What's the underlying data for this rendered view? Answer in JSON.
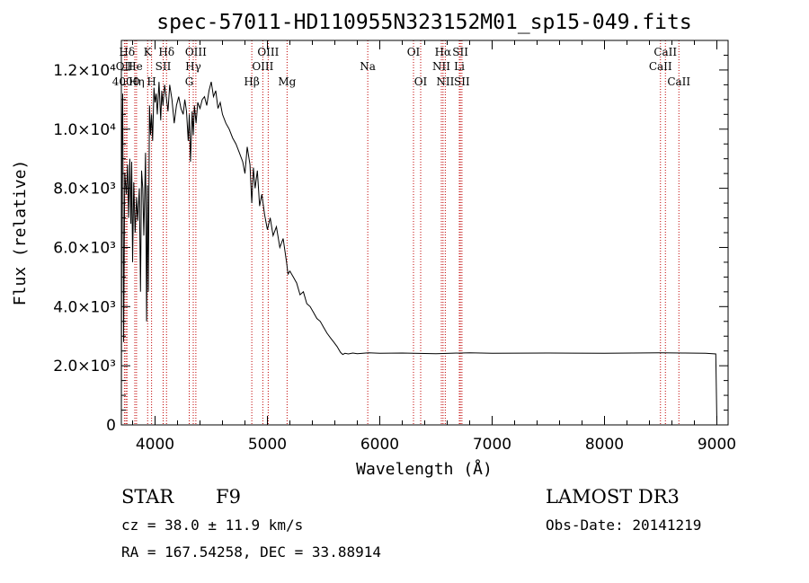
{
  "chart_data": {
    "type": "line",
    "title": "spec-57011-HD110955N323152M01_sp15-049.fits",
    "xlabel": "Wavelength (Å)",
    "ylabel": "Flux (relative)",
    "xlim": [
      3700,
      9100
    ],
    "ylim": [
      0,
      13000
    ],
    "xticks": [
      {
        "value": 4000,
        "label": "4000"
      },
      {
        "value": 5000,
        "label": "5000"
      },
      {
        "value": 6000,
        "label": "6000"
      },
      {
        "value": 7000,
        "label": "7000"
      },
      {
        "value": 8000,
        "label": "8000"
      },
      {
        "value": 9000,
        "label": "9000"
      }
    ],
    "yticks": [
      {
        "value": 0,
        "label": "0"
      },
      {
        "value": 2000,
        "label": "2.0×10³"
      },
      {
        "value": 4000,
        "label": "4.0×10³"
      },
      {
        "value": 6000,
        "label": "6.0×10³"
      },
      {
        "value": 8000,
        "label": "8.0×10³"
      },
      {
        "value": 10000,
        "label": "1.0×10⁴"
      },
      {
        "value": 12000,
        "label": "1.2×10⁴"
      }
    ],
    "spectral_lines": [
      {
        "label": "Hδ",
        "wavelength": 3750,
        "row": 1
      },
      {
        "label": "OII",
        "wavelength": 3727,
        "row": 2
      },
      {
        "label": "4000",
        "wavelength": 3740,
        "row": 3
      },
      {
        "label": "He",
        "wavelength": 3820,
        "row": 2
      },
      {
        "label": "Hη",
        "wavelength": 3835,
        "row": 3
      },
      {
        "label": "K",
        "wavelength": 3934,
        "row": 1
      },
      {
        "label": "H",
        "wavelength": 3969,
        "row": 3
      },
      {
        "label": "SII",
        "wavelength": 4072,
        "row": 2
      },
      {
        "label": "Hδ",
        "wavelength": 4102,
        "row": 1
      },
      {
        "label": "OIII",
        "wavelength": 4363,
        "row": 1
      },
      {
        "label": "Hγ",
        "wavelength": 4340,
        "row": 2
      },
      {
        "label": "G",
        "wavelength": 4304,
        "row": 3
      },
      {
        "label": "Hβ",
        "wavelength": 4861,
        "row": 3
      },
      {
        "label": "OIII",
        "wavelength": 4959,
        "row": 2
      },
      {
        "label": "OIII",
        "wavelength": 5007,
        "row": 1
      },
      {
        "label": "Mg",
        "wavelength": 5175,
        "row": 3
      },
      {
        "label": "Na",
        "wavelength": 5893,
        "row": 2
      },
      {
        "label": "OI",
        "wavelength": 6300,
        "row": 1
      },
      {
        "label": "OI",
        "wavelength": 6364,
        "row": 3
      },
      {
        "label": "NII",
        "wavelength": 6548,
        "row": 2
      },
      {
        "label": "Hα",
        "wavelength": 6563,
        "row": 1
      },
      {
        "label": "NII",
        "wavelength": 6583,
        "row": 3
      },
      {
        "label": "SII",
        "wavelength": 6717,
        "row": 1
      },
      {
        "label": "Li",
        "wavelength": 6708,
        "row": 2
      },
      {
        "label": "SII",
        "wavelength": 6731,
        "row": 3
      },
      {
        "label": "CaII",
        "wavelength": 8498,
        "row": 2
      },
      {
        "label": "CaII",
        "wavelength": 8542,
        "row": 1
      },
      {
        "label": "CaII",
        "wavelength": 8662,
        "row": 3
      }
    ],
    "series": [
      {
        "name": "flux",
        "x": [
          3700,
          3705,
          3712,
          3720,
          3730,
          3745,
          3755,
          3765,
          3775,
          3785,
          3792,
          3800,
          3810,
          3822,
          3835,
          3845,
          3860,
          3870,
          3880,
          3890,
          3900,
          3915,
          3925,
          3933,
          3940,
          3950,
          3960,
          3969,
          3978,
          3990,
          4000,
          4010,
          4020,
          4035,
          4050,
          4060,
          4070,
          4085,
          4102,
          4115,
          4130,
          4150,
          4170,
          4190,
          4210,
          4230,
          4250,
          4265,
          4280,
          4295,
          4305,
          4315,
          4330,
          4340,
          4350,
          4365,
          4380,
          4400,
          4420,
          4440,
          4460,
          4480,
          4500,
          4520,
          4540,
          4560,
          4580,
          4600,
          4630,
          4660,
          4690,
          4720,
          4750,
          4780,
          4800,
          4820,
          4845,
          4861,
          4875,
          4890,
          4910,
          4930,
          4950,
          4975,
          5000,
          5025,
          5050,
          5080,
          5110,
          5140,
          5170,
          5183,
          5200,
          5230,
          5260,
          5290,
          5320,
          5350,
          5380,
          5410,
          5440,
          5470,
          5500,
          5530,
          5560,
          5590,
          5620,
          5650,
          5670,
          5690,
          5720,
          5760,
          5800,
          5900,
          6000,
          6200,
          6500,
          6800,
          7000,
          7500,
          8000,
          8500,
          8700,
          8900,
          8990,
          9000
        ],
        "y": [
          100,
          9500,
          11200,
          2800,
          8500,
          7800,
          8800,
          7000,
          9000,
          6800,
          8900,
          5500,
          8200,
          6500,
          7700,
          6900,
          8000,
          4500,
          8600,
          8000,
          6400,
          9200,
          3500,
          8100,
          4500,
          10800,
          9800,
          10500,
          9600,
          11400,
          10900,
          11200,
          10500,
          11600,
          10300,
          11300,
          10800,
          11500,
          11000,
          10600,
          11500,
          11000,
          10200,
          10800,
          11100,
          10700,
          10500,
          11000,
          10600,
          9600,
          10500,
          8900,
          10600,
          9800,
          10800,
          10200,
          10900,
          10700,
          11000,
          11100,
          10800,
          11300,
          11600,
          11100,
          11300,
          10700,
          10900,
          10500,
          10200,
          10000,
          9700,
          9500,
          9200,
          8900,
          8500,
          9400,
          8800,
          7500,
          8700,
          8000,
          8600,
          7400,
          7800,
          7100,
          6600,
          7000,
          6400,
          6700,
          6000,
          6300,
          5500,
          5100,
          5200,
          5000,
          4800,
          4400,
          4500,
          4100,
          4000,
          3800,
          3600,
          3500,
          3300,
          3100,
          2950,
          2800,
          2650,
          2450,
          2380,
          2420,
          2400,
          2430,
          2410,
          2440,
          2420,
          2430,
          2410,
          2440,
          2420,
          2430,
          2420,
          2440,
          2430,
          2420,
          2400,
          100
        ]
      }
    ]
  },
  "info": {
    "object_class": "STAR",
    "subclass": "F9",
    "survey": "LAMOST DR3",
    "cz": "cz = 38.0 ± 11.9 km/s",
    "obs_date": "Obs-Date: 20141219",
    "coords": "RA = 167.54258, DEC =  33.88914"
  }
}
